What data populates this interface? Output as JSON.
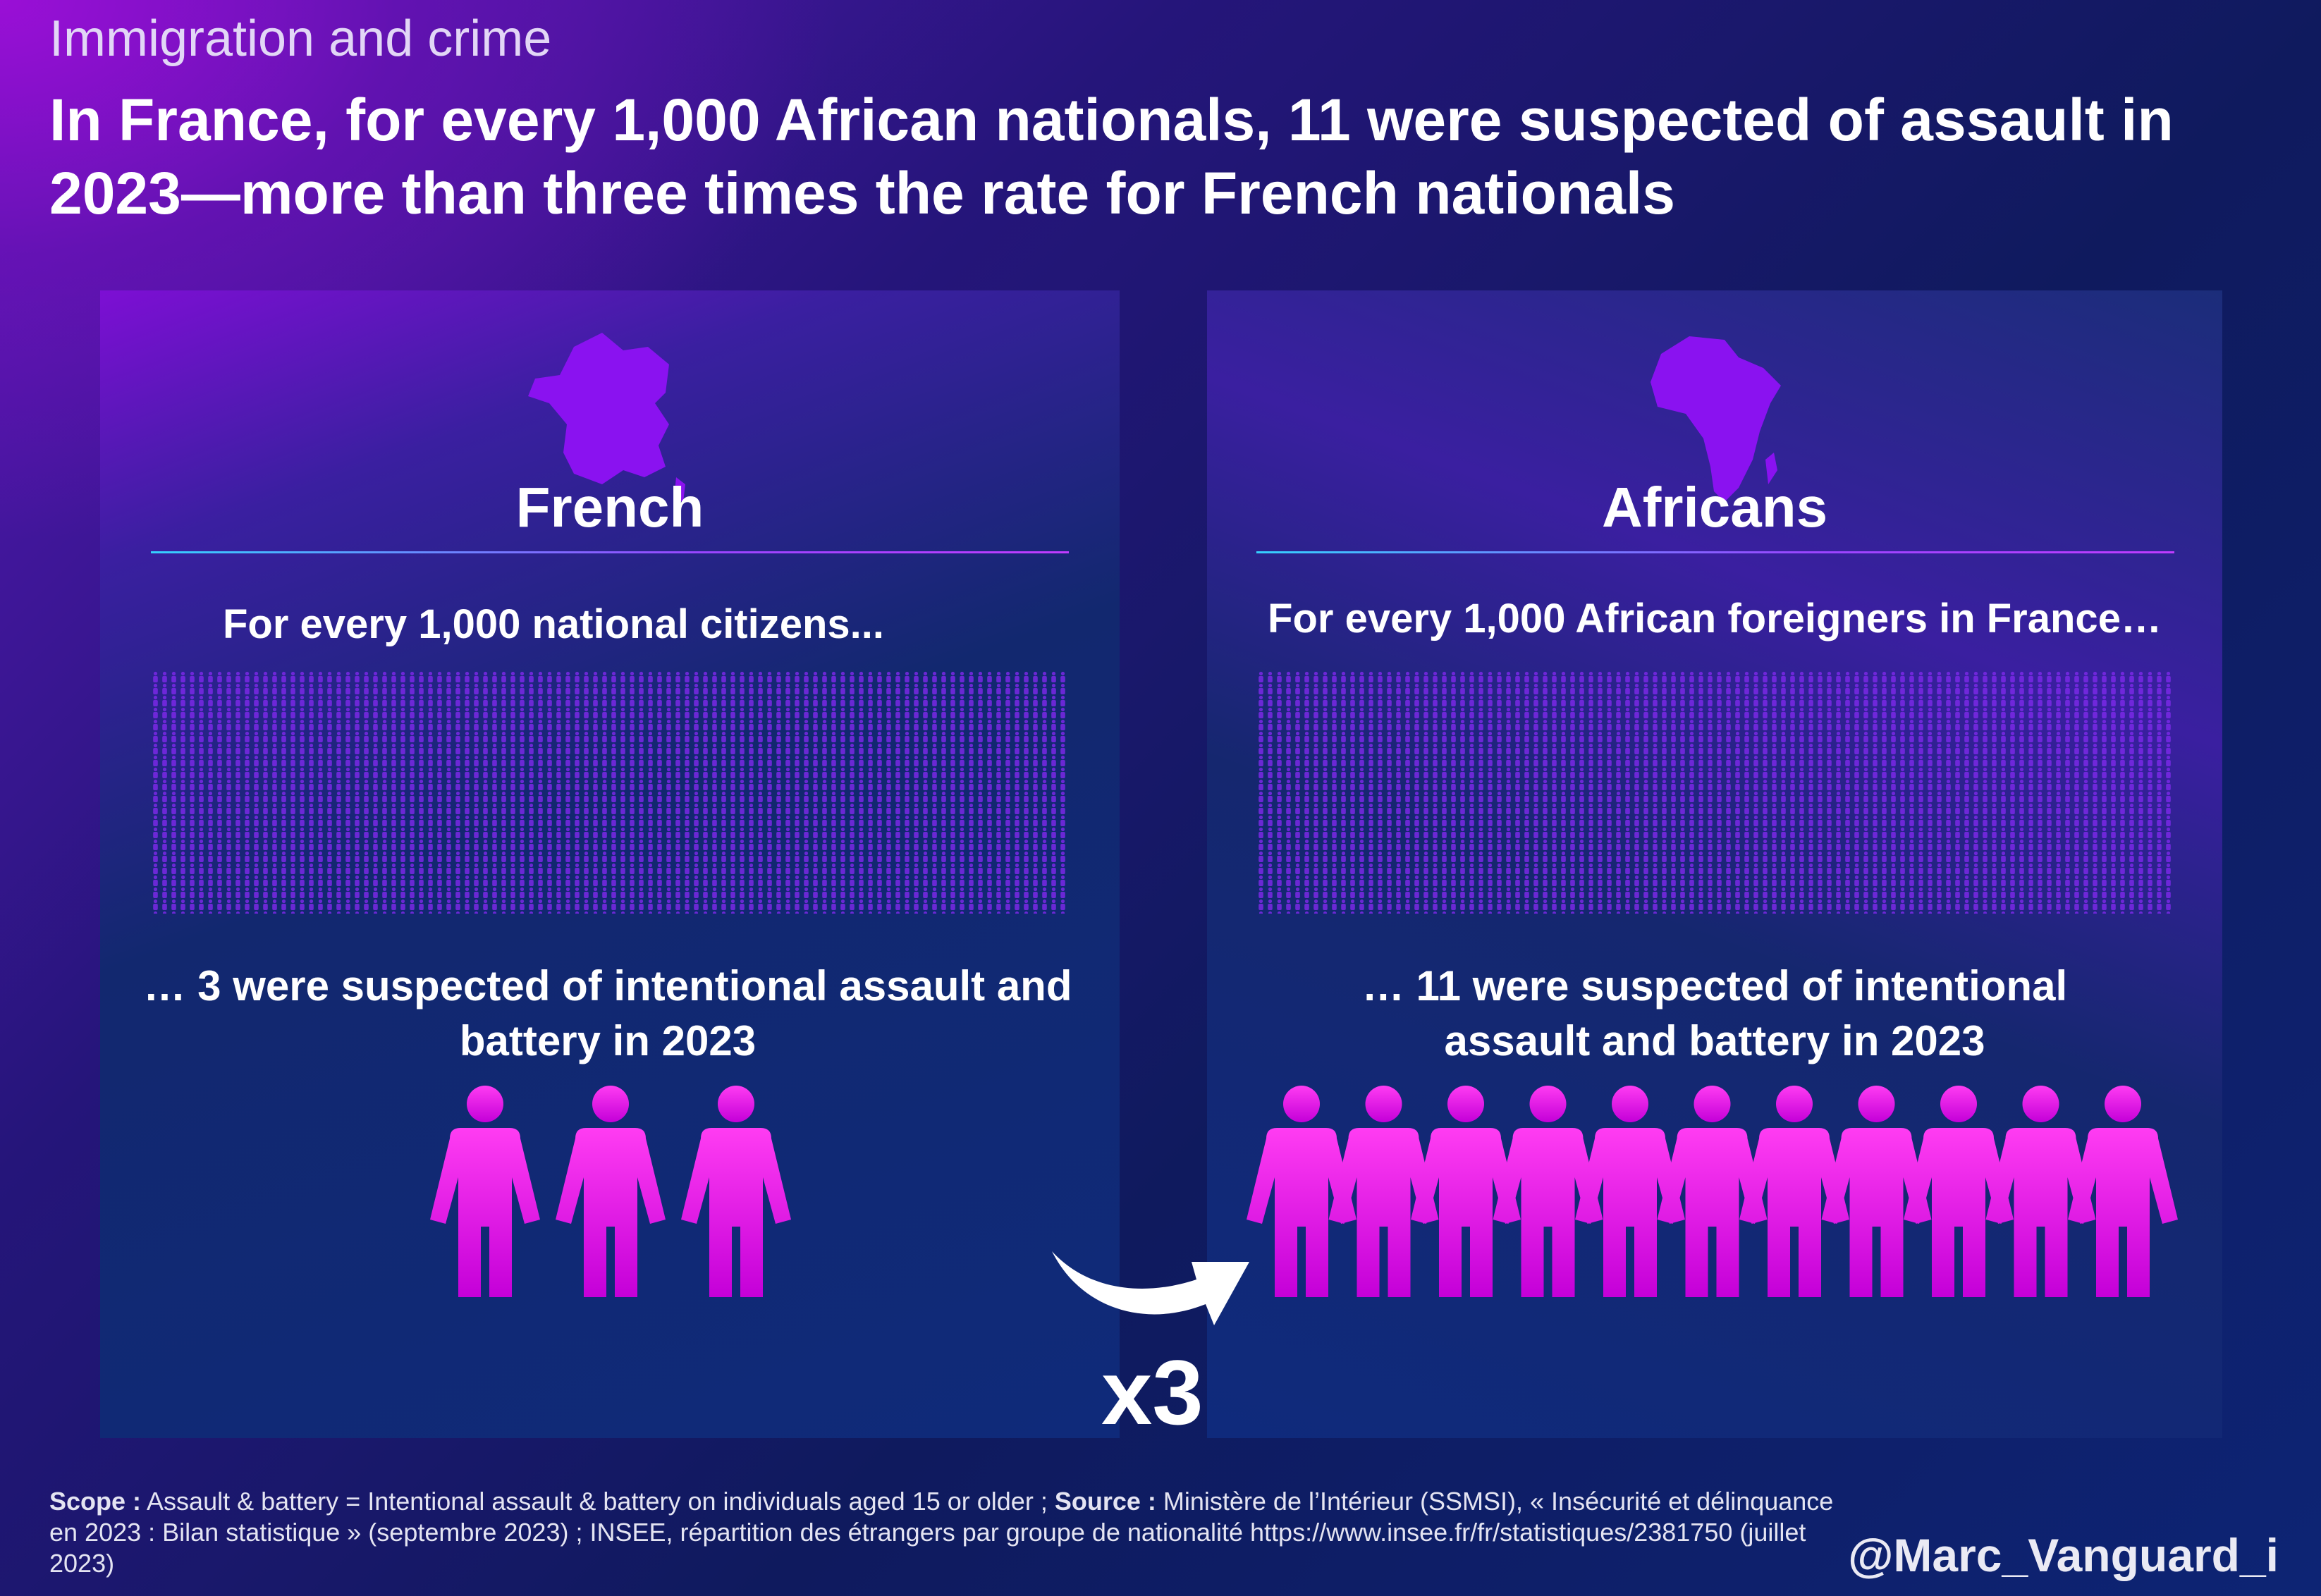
{
  "chart_data": {
    "type": "pictograph",
    "overtitle": "Immigration and crime",
    "headline": "In France, for every 1,000 African nationals, 11 were suspected of assault in 2023—more than three times the rate for French nationals",
    "panels": [
      {
        "group": "French",
        "base": 1000,
        "base_label": "For every 1,000 national citizens...",
        "suspected": 3,
        "outcome_label": "… 3 were suspected of intentional assault and battery in 2023",
        "map_icon": "france-map-icon"
      },
      {
        "group": "Africans",
        "base": 1000,
        "base_label": "For every 1,000 African foreigners in France…",
        "suspected": 11,
        "outcome_label": "… 11 were suspected of intentional assault and battery in 2023",
        "map_icon": "africa-map-icon"
      }
    ],
    "multiplier_label": "x3",
    "colors": {
      "icon": "#8a12f0",
      "highlight": "#e018e6",
      "grid": "#7a28e6"
    }
  },
  "footnote": {
    "scope_label": "Scope :",
    "scope_text": " Assault & battery = Intentional assault & battery on individuals aged 15 or older ; ",
    "source_label": "Source :",
    "source_text": " Ministère de l’Intérieur (SSMSI), « Insécurité et délinquance en 2023 : Bilan statistique » (septembre 2023) ; INSEE, répartition des étrangers par groupe de nationalité https://www.insee.fr/fr/statistiques/2381750 (juillet 2023)"
  },
  "handle": "@Marc_Vanguard_i"
}
